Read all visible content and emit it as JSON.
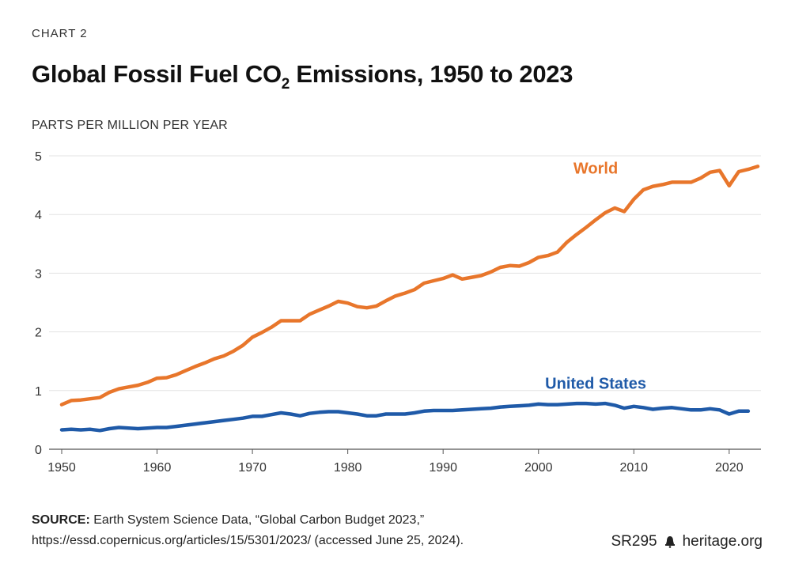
{
  "kicker": "CHART 2",
  "title_main": "Global Fossil Fuel CO",
  "title_sub": "2",
  "title_rest": " Emissions, 1950 to 2023",
  "source_label": "SOURCE:",
  "source_text": " Earth System Science Data, “Global Carbon Budget 2023,” https://essd.copernicus.org/articles/15/5301/2023/ (accessed June 25, 2024).",
  "report_id": "SR295",
  "site": "heritage.org",
  "chart_data": {
    "type": "line",
    "title": "Global Fossil Fuel CO2 Emissions, 1950 to 2023",
    "ylabel": "PARTS PER MILLION PER YEAR",
    "xlabel": "",
    "xlim": [
      1950,
      2023
    ],
    "ylim": [
      0,
      5
    ],
    "x_ticks": [
      1950,
      1960,
      1970,
      1980,
      1990,
      2000,
      2010,
      2020
    ],
    "y_ticks": [
      0,
      1,
      2,
      3,
      4,
      5
    ],
    "grid": "horizontal",
    "colors": {
      "world": "#e8762b",
      "us": "#1f5aa8"
    },
    "series": [
      {
        "name": "World",
        "x": [
          1950,
          1951,
          1952,
          1953,
          1954,
          1955,
          1956,
          1957,
          1958,
          1959,
          1960,
          1961,
          1962,
          1963,
          1964,
          1965,
          1966,
          1967,
          1968,
          1969,
          1970,
          1971,
          1972,
          1973,
          1974,
          1975,
          1976,
          1977,
          1978,
          1979,
          1980,
          1981,
          1982,
          1983,
          1984,
          1985,
          1986,
          1987,
          1988,
          1989,
          1990,
          1991,
          1992,
          1993,
          1994,
          1995,
          1996,
          1997,
          1998,
          1999,
          2000,
          2001,
          2002,
          2003,
          2004,
          2005,
          2006,
          2007,
          2008,
          2009,
          2010,
          2011,
          2012,
          2013,
          2014,
          2015,
          2016,
          2017,
          2018,
          2019,
          2020,
          2021,
          2022,
          2023
        ],
        "values": [
          0.76,
          0.83,
          0.84,
          0.86,
          0.88,
          0.97,
          1.03,
          1.06,
          1.09,
          1.14,
          1.21,
          1.22,
          1.27,
          1.34,
          1.41,
          1.47,
          1.54,
          1.59,
          1.67,
          1.77,
          1.91,
          1.99,
          2.08,
          2.19,
          2.19,
          2.19,
          2.3,
          2.37,
          2.44,
          2.52,
          2.49,
          2.43,
          2.41,
          2.44,
          2.53,
          2.61,
          2.66,
          2.72,
          2.83,
          2.87,
          2.91,
          2.97,
          2.9,
          2.93,
          2.96,
          3.02,
          3.1,
          3.13,
          3.12,
          3.18,
          3.27,
          3.3,
          3.36,
          3.53,
          3.66,
          3.78,
          3.91,
          4.03,
          4.11,
          4.05,
          4.26,
          4.42,
          4.48,
          4.51,
          4.55,
          4.55,
          4.55,
          4.62,
          4.72,
          4.75,
          4.49,
          4.73,
          4.77,
          4.82
        ]
      },
      {
        "name": "United States",
        "x": [
          1950,
          1951,
          1952,
          1953,
          1954,
          1955,
          1956,
          1957,
          1958,
          1959,
          1960,
          1961,
          1962,
          1963,
          1964,
          1965,
          1966,
          1967,
          1968,
          1969,
          1970,
          1971,
          1972,
          1973,
          1974,
          1975,
          1976,
          1977,
          1978,
          1979,
          1980,
          1981,
          1982,
          1983,
          1984,
          1985,
          1986,
          1987,
          1988,
          1989,
          1990,
          1991,
          1992,
          1993,
          1994,
          1995,
          1996,
          1997,
          1998,
          1999,
          2000,
          2001,
          2002,
          2003,
          2004,
          2005,
          2006,
          2007,
          2008,
          2009,
          2010,
          2011,
          2012,
          2013,
          2014,
          2015,
          2016,
          2017,
          2018,
          2019,
          2020,
          2021,
          2022
        ],
        "values": [
          0.33,
          0.34,
          0.33,
          0.34,
          0.32,
          0.35,
          0.37,
          0.36,
          0.35,
          0.36,
          0.37,
          0.37,
          0.39,
          0.41,
          0.43,
          0.45,
          0.47,
          0.49,
          0.51,
          0.53,
          0.56,
          0.56,
          0.59,
          0.62,
          0.6,
          0.57,
          0.61,
          0.63,
          0.64,
          0.64,
          0.62,
          0.6,
          0.57,
          0.57,
          0.6,
          0.6,
          0.6,
          0.62,
          0.65,
          0.66,
          0.66,
          0.66,
          0.67,
          0.68,
          0.69,
          0.7,
          0.72,
          0.73,
          0.74,
          0.75,
          0.77,
          0.76,
          0.76,
          0.77,
          0.78,
          0.78,
          0.77,
          0.78,
          0.75,
          0.7,
          0.73,
          0.71,
          0.68,
          0.7,
          0.71,
          0.69,
          0.67,
          0.67,
          0.69,
          0.67,
          0.6,
          0.65,
          0.65
        ]
      }
    ],
    "annotations": [
      {
        "text": "World",
        "series": "World"
      },
      {
        "text": "United States",
        "series": "United States"
      }
    ]
  }
}
